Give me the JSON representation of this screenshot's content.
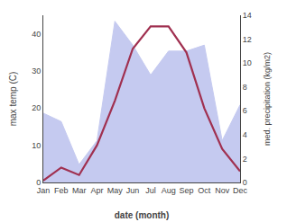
{
  "chart_data": {
    "type": "line",
    "x_label": "date (month)",
    "y_label": "max temp (C)",
    "y2_label": "med. precipitation (kg/m2)",
    "categories": [
      "Jan",
      "Feb",
      "Mar",
      "Apr",
      "May",
      "Jun",
      "Jul",
      "Aug",
      "Sep",
      "Oct",
      "Nov",
      "Dec"
    ],
    "series": [
      {
        "type": "area",
        "color": "#c5caf0",
        "axis": "y2",
        "values": [
          5.8,
          5.1,
          1.5,
          3.5,
          13.5,
          11.5,
          9.0,
          11.0,
          11.0,
          11.5,
          3.5,
          6.5
        ]
      },
      {
        "type": "line",
        "color": "#a03050",
        "values": [
          0.5,
          4.0,
          2.0,
          10.0,
          22.0,
          36.0,
          42.0,
          42.0,
          35.0,
          20.0,
          9.0,
          3.0
        ]
      }
    ],
    "ylim": [
      0,
      45
    ],
    "yticks": [
      0,
      10,
      20,
      30,
      40
    ],
    "y2lim": [
      0,
      14
    ],
    "y2ticks": [
      0,
      2,
      4,
      6,
      8,
      10,
      12,
      14
    ],
    "grid": false
  }
}
